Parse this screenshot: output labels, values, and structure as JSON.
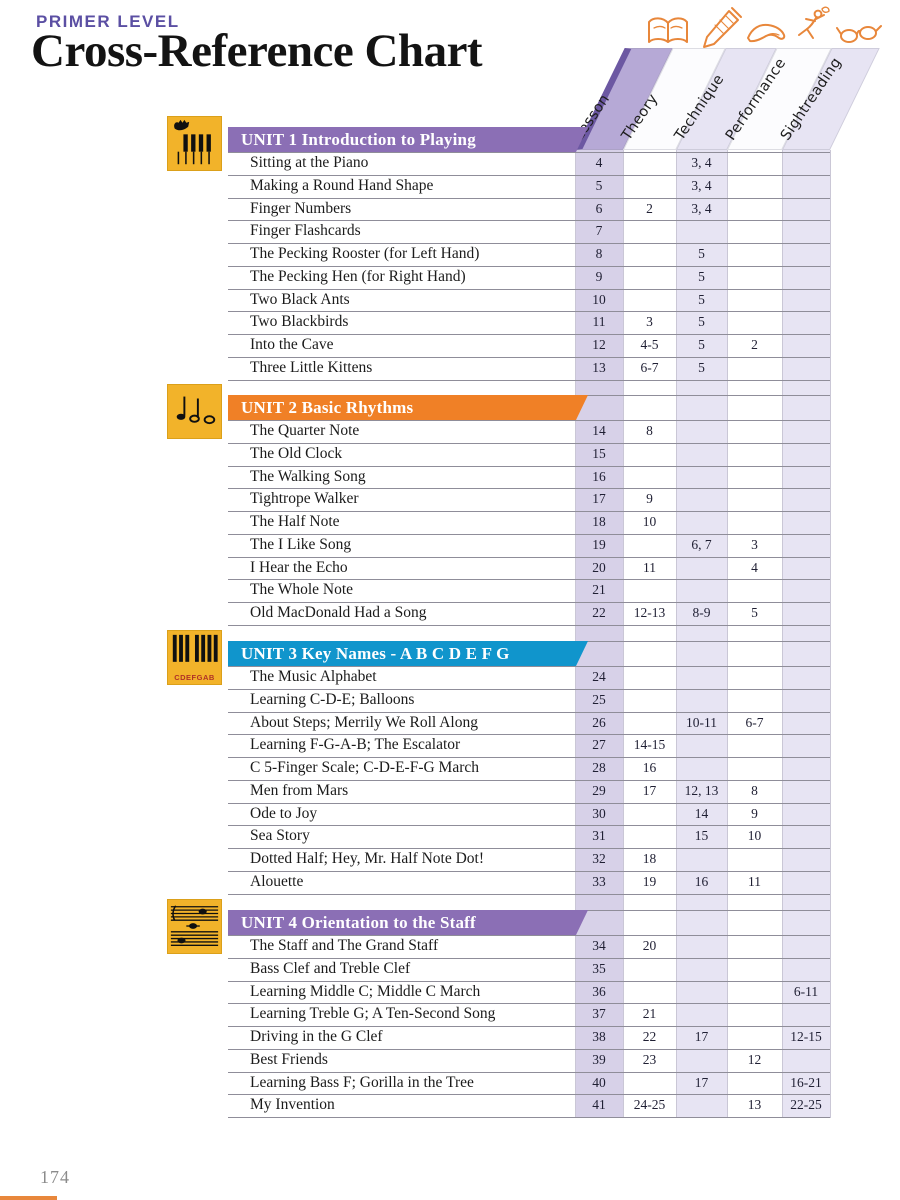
{
  "page": {
    "eyebrow": "PRIMER LEVEL",
    "title": "Cross-Reference Chart",
    "page_number": "174"
  },
  "colors": {
    "eyebrow_purple": "#5b4fa3",
    "unit_purple": "#8b6fb5",
    "unit_orange": "#f08026",
    "unit_blue": "#1095cc",
    "unit_icon_yellow": "#f2b32a",
    "unit_icon_border": "#dba01a",
    "icon_stroke_orange": "#e8873b",
    "lesson_stripe": "#d7d1e8",
    "light_stripe": "#e7e4f3",
    "lesson_band": "#b6a9d6",
    "lesson_band_edge": "#6c58a2",
    "white_band": "#fcfcfe",
    "grid_line": "#8f8d99",
    "grid_vline": "#cac7d6",
    "page_number_gray": "#8b8b8b",
    "caption_red": "#b03226",
    "ink_black": "#101010"
  },
  "columns": [
    {
      "label": "Lesson",
      "icon": "open-book-icon"
    },
    {
      "label": "Theory",
      "icon": "pencil-icon"
    },
    {
      "label": "Technique",
      "icon": "hand-icon"
    },
    {
      "label": "Performance",
      "icon": "dancer-icon"
    },
    {
      "label": "Sightreading",
      "icon": "glasses-icon"
    }
  ],
  "units": [
    {
      "header": "UNIT 1 Introduction to Playing",
      "color": "#8b6fb5",
      "icon": "hand-on-keys-icon",
      "rows": [
        {
          "title": "Sitting at the Piano",
          "lesson": "4",
          "theory": "",
          "technique": "3, 4",
          "performance": "",
          "sightreading": ""
        },
        {
          "title": "Making a Round Hand Shape",
          "lesson": "5",
          "theory": "",
          "technique": "3, 4",
          "performance": "",
          "sightreading": ""
        },
        {
          "title": "Finger Numbers",
          "lesson": "6",
          "theory": "2",
          "technique": "3, 4",
          "performance": "",
          "sightreading": ""
        },
        {
          "title": "Finger Flashcards",
          "lesson": "7",
          "theory": "",
          "technique": "",
          "performance": "",
          "sightreading": ""
        },
        {
          "title": "The Pecking Rooster (for Left Hand)",
          "lesson": "8",
          "theory": "",
          "technique": "5",
          "performance": "",
          "sightreading": ""
        },
        {
          "title": "The Pecking Hen (for Right Hand)",
          "lesson": "9",
          "theory": "",
          "technique": "5",
          "performance": "",
          "sightreading": ""
        },
        {
          "title": "Two Black Ants",
          "lesson": "10",
          "theory": "",
          "technique": "5",
          "performance": "",
          "sightreading": ""
        },
        {
          "title": "Two Blackbirds",
          "lesson": "11",
          "theory": "3",
          "technique": "5",
          "performance": "",
          "sightreading": ""
        },
        {
          "title": "Into the Cave",
          "lesson": "12",
          "theory": "4-5",
          "technique": "5",
          "performance": "2",
          "sightreading": ""
        },
        {
          "title": "Three Little Kittens",
          "lesson": "13",
          "theory": "6-7",
          "technique": "5",
          "performance": "",
          "sightreading": ""
        }
      ]
    },
    {
      "header": "UNIT 2 Basic Rhythms",
      "color": "#f08026",
      "icon": "rhythm-notes-icon",
      "rows": [
        {
          "title": "The Quarter Note",
          "lesson": "14",
          "theory": "8",
          "technique": "",
          "performance": "",
          "sightreading": ""
        },
        {
          "title": "The Old Clock",
          "lesson": "15",
          "theory": "",
          "technique": "",
          "performance": "",
          "sightreading": ""
        },
        {
          "title": "The Walking Song",
          "lesson": "16",
          "theory": "",
          "technique": "",
          "performance": "",
          "sightreading": ""
        },
        {
          "title": "Tightrope Walker",
          "lesson": "17",
          "theory": "9",
          "technique": "",
          "performance": "",
          "sightreading": ""
        },
        {
          "title": "The Half Note",
          "lesson": "18",
          "theory": "10",
          "technique": "",
          "performance": "",
          "sightreading": ""
        },
        {
          "title": "The I Like Song",
          "lesson": "19",
          "theory": "",
          "technique": "6, 7",
          "performance": "3",
          "sightreading": ""
        },
        {
          "title": "I Hear the Echo",
          "lesson": "20",
          "theory": "11",
          "technique": "",
          "performance": "4",
          "sightreading": ""
        },
        {
          "title": "The Whole Note",
          "lesson": "21",
          "theory": "",
          "technique": "",
          "performance": "",
          "sightreading": ""
        },
        {
          "title": "Old MacDonald Had a Song",
          "lesson": "22",
          "theory": "12-13",
          "technique": "8-9",
          "performance": "5",
          "sightreading": ""
        }
      ]
    },
    {
      "header": "UNIT 3 Key Names - A B C D E F G",
      "color": "#1095cc",
      "icon": "keyboard-letters-icon",
      "icon_label": "CDEFGAB",
      "rows": [
        {
          "title": "The Music Alphabet",
          "lesson": "24",
          "theory": "",
          "technique": "",
          "performance": "",
          "sightreading": ""
        },
        {
          "title": "Learning C-D-E; Balloons",
          "lesson": "25",
          "theory": "",
          "technique": "",
          "performance": "",
          "sightreading": ""
        },
        {
          "title": "About Steps; Merrily We Roll Along",
          "lesson": "26",
          "theory": "",
          "technique": "10-11",
          "performance": "6-7",
          "sightreading": ""
        },
        {
          "title": "Learning F-G-A-B; The Escalator",
          "lesson": "27",
          "theory": "14-15",
          "technique": "",
          "performance": "",
          "sightreading": ""
        },
        {
          "title": "C 5-Finger Scale; C-D-E-F-G March",
          "lesson": "28",
          "theory": "16",
          "technique": "",
          "performance": "",
          "sightreading": ""
        },
        {
          "title": "Men from Mars",
          "lesson": "29",
          "theory": "17",
          "technique": "12, 13",
          "performance": "8",
          "sightreading": ""
        },
        {
          "title": "Ode to Joy",
          "lesson": "30",
          "theory": "",
          "technique": "14",
          "performance": "9",
          "sightreading": ""
        },
        {
          "title": "Sea Story",
          "lesson": "31",
          "theory": "",
          "technique": "15",
          "performance": "10",
          "sightreading": ""
        },
        {
          "title": "Dotted Half; Hey, Mr. Half Note Dot!",
          "lesson": "32",
          "theory": "18",
          "technique": "",
          "performance": "",
          "sightreading": ""
        },
        {
          "title": "Alouette",
          "lesson": "33",
          "theory": "19",
          "technique": "16",
          "performance": "11",
          "sightreading": ""
        }
      ]
    },
    {
      "header": "UNIT 4 Orientation to the Staff",
      "color": "#8b6fb5",
      "icon": "grand-staff-icon",
      "rows": [
        {
          "title": "The Staff and The Grand Staff",
          "lesson": "34",
          "theory": "20",
          "technique": "",
          "performance": "",
          "sightreading": ""
        },
        {
          "title": "Bass Clef and Treble Clef",
          "lesson": "35",
          "theory": "",
          "technique": "",
          "performance": "",
          "sightreading": ""
        },
        {
          "title": "Learning Middle C; Middle C March",
          "lesson": "36",
          "theory": "",
          "technique": "",
          "performance": "",
          "sightreading": "6-11"
        },
        {
          "title": "Learning Treble G; A Ten-Second Song",
          "lesson": "37",
          "theory": "21",
          "technique": "",
          "performance": "",
          "sightreading": ""
        },
        {
          "title": "Driving in the G Clef",
          "lesson": "38",
          "theory": "22",
          "technique": "17",
          "performance": "",
          "sightreading": "12-15"
        },
        {
          "title": "Best Friends",
          "lesson": "39",
          "theory": "23",
          "technique": "",
          "performance": "12",
          "sightreading": ""
        },
        {
          "title": "Learning Bass F; Gorilla in the Tree",
          "lesson": "40",
          "theory": "",
          "technique": "17",
          "performance": "",
          "sightreading": "16-21"
        },
        {
          "title": "My Invention",
          "lesson": "41",
          "theory": "24-25",
          "technique": "",
          "performance": "13",
          "sightreading": "22-25"
        }
      ]
    }
  ]
}
